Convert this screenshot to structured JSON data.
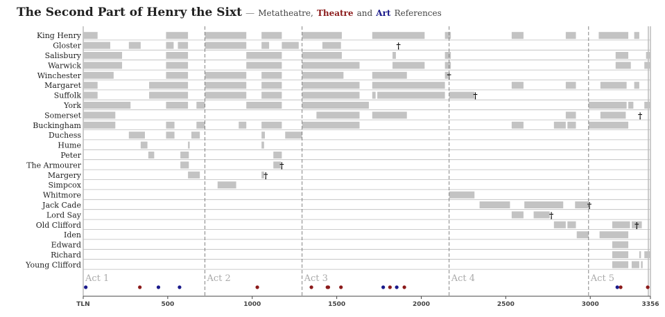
{
  "title": {
    "main": "The Second Part of Henry the Sixt",
    "separator": "—",
    "sub_prefix": "Metatheatre,",
    "theatre": "Theatre",
    "sub_and": "and",
    "art": "Art",
    "sub_suffix": "References"
  },
  "colors": {
    "bar": "#c3c3c3",
    "line": "#bbbbbb",
    "theatre": "#8b1a1a",
    "art": "#1a1a8b",
    "metatheatre": "#1a1a8b"
  },
  "chart_data": {
    "type": "timeline",
    "xmin": 0,
    "xmax": 3356,
    "tick_labels": [
      {
        "x": 0,
        "label": "TLN"
      },
      {
        "x": 500,
        "label": "500"
      },
      {
        "x": 1000,
        "label": "1000"
      },
      {
        "x": 1500,
        "label": "1500"
      },
      {
        "x": 2000,
        "label": "2000"
      },
      {
        "x": 2500,
        "label": "2500"
      },
      {
        "x": 3000,
        "label": "3000"
      },
      {
        "x": 3356,
        "label": "3356"
      }
    ],
    "acts": [
      {
        "label": "Act 1",
        "start": 0
      },
      {
        "label": "Act 2",
        "start": 720
      },
      {
        "label": "Act 3",
        "start": 1295
      },
      {
        "label": "Act 4",
        "start": 2165
      },
      {
        "label": "Act 5",
        "start": 2990
      }
    ],
    "characters": [
      {
        "name": "King Henry",
        "segments": [
          [
            0,
            85
          ],
          [
            490,
            620
          ],
          [
            720,
            965
          ],
          [
            1055,
            1175
          ],
          [
            1295,
            1530
          ],
          [
            1710,
            2020
          ],
          [
            2140,
            2175
          ],
          [
            2535,
            2605
          ],
          [
            2855,
            2915
          ],
          [
            3050,
            3225
          ],
          [
            3260,
            3290
          ]
        ]
      },
      {
        "name": "Gloster",
        "segments": [
          [
            0,
            160
          ],
          [
            270,
            340
          ],
          [
            490,
            535
          ],
          [
            560,
            620
          ],
          [
            720,
            965
          ],
          [
            1055,
            1100
          ],
          [
            1175,
            1275
          ],
          [
            1415,
            1525
          ]
        ],
        "death": 1865
      },
      {
        "name": "Salisbury",
        "segments": [
          [
            0,
            230
          ],
          [
            490,
            620
          ],
          [
            965,
            1175
          ],
          [
            1295,
            1530
          ],
          [
            1830,
            1850
          ],
          [
            2140,
            2175
          ],
          [
            3150,
            3225
          ],
          [
            3330,
            3356
          ]
        ]
      },
      {
        "name": "Warwick",
        "segments": [
          [
            0,
            230
          ],
          [
            490,
            620
          ],
          [
            965,
            1175
          ],
          [
            1295,
            1635
          ],
          [
            1830,
            2020
          ],
          [
            2140,
            2175
          ],
          [
            3150,
            3240
          ],
          [
            3320,
            3356
          ]
        ]
      },
      {
        "name": "Winchester",
        "segments": [
          [
            0,
            180
          ],
          [
            490,
            620
          ],
          [
            720,
            965
          ],
          [
            1055,
            1175
          ],
          [
            1295,
            1540
          ],
          [
            1710,
            1915
          ],
          [
            2140,
            2160
          ]
        ],
        "death": 2165
      },
      {
        "name": "Margaret",
        "segments": [
          [
            0,
            85
          ],
          [
            390,
            620
          ],
          [
            720,
            965
          ],
          [
            1055,
            1175
          ],
          [
            1295,
            1635
          ],
          [
            1710,
            2140
          ],
          [
            2535,
            2605
          ],
          [
            2855,
            2915
          ],
          [
            3060,
            3215
          ],
          [
            3260,
            3290
          ]
        ]
      },
      {
        "name": "Suffolk",
        "segments": [
          [
            0,
            85
          ],
          [
            390,
            620
          ],
          [
            720,
            965
          ],
          [
            1055,
            1175
          ],
          [
            1295,
            1635
          ],
          [
            1710,
            1730
          ],
          [
            1740,
            2140
          ],
          [
            2165,
            2315
          ]
        ],
        "death": 2320
      },
      {
        "name": "York",
        "segments": [
          [
            0,
            280
          ],
          [
            490,
            620
          ],
          [
            670,
            720
          ],
          [
            965,
            1175
          ],
          [
            1295,
            1690
          ],
          [
            2990,
            3215
          ],
          [
            3225,
            3255
          ],
          [
            3320,
            3356
          ]
        ]
      },
      {
        "name": "Somerset",
        "segments": [
          [
            0,
            190
          ],
          [
            1380,
            1635
          ],
          [
            1710,
            1915
          ],
          [
            2855,
            2915
          ],
          [
            3060,
            3210
          ]
        ],
        "death": 3295
      },
      {
        "name": "Buckingham",
        "segments": [
          [
            0,
            190
          ],
          [
            490,
            540
          ],
          [
            670,
            720
          ],
          [
            920,
            965
          ],
          [
            1055,
            1175
          ],
          [
            1295,
            1635
          ],
          [
            2535,
            2605
          ],
          [
            2785,
            2855
          ],
          [
            2865,
            2915
          ],
          [
            2990,
            3225
          ]
        ]
      },
      {
        "name": "Duchess",
        "segments": [
          [
            270,
            365
          ],
          [
            490,
            540
          ],
          [
            640,
            690
          ],
          [
            1055,
            1075
          ],
          [
            1195,
            1295
          ]
        ]
      },
      {
        "name": "Hume",
        "segments": [
          [
            340,
            380
          ],
          [
            620,
            630
          ],
          [
            1055,
            1070
          ]
        ]
      },
      {
        "name": "Peter",
        "segments": [
          [
            385,
            420
          ],
          [
            575,
            625
          ],
          [
            1125,
            1175
          ]
        ]
      },
      {
        "name": "The Armourer",
        "segments": [
          [
            575,
            625
          ],
          [
            1125,
            1170
          ]
        ],
        "death": 1175
      },
      {
        "name": "Margery",
        "segments": [
          [
            620,
            690
          ],
          [
            1055,
            1070
          ]
        ],
        "death": 1080
      },
      {
        "name": "Simpcox",
        "segments": [
          [
            795,
            905
          ]
        ]
      },
      {
        "name": "Whitmore",
        "segments": [
          [
            2165,
            2315
          ]
        ]
      },
      {
        "name": "Jack Cade",
        "segments": [
          [
            2345,
            2525
          ],
          [
            2610,
            2840
          ],
          [
            2910,
            2990
          ]
        ],
        "death": 2995
      },
      {
        "name": "Lord Say",
        "segments": [
          [
            2535,
            2605
          ],
          [
            2665,
            2760
          ]
        ],
        "death": 2770
      },
      {
        "name": "Old Clifford",
        "segments": [
          [
            2785,
            2855
          ],
          [
            2865,
            2915
          ],
          [
            3130,
            3235
          ],
          [
            3245,
            3305
          ]
        ],
        "death": 3275
      },
      {
        "name": "Iden",
        "segments": [
          [
            2920,
            2990
          ],
          [
            3055,
            3225
          ]
        ]
      },
      {
        "name": "Edward",
        "segments": [
          [
            3130,
            3225
          ]
        ]
      },
      {
        "name": "Richard",
        "segments": [
          [
            3130,
            3225
          ],
          [
            3290,
            3300
          ],
          [
            3320,
            3356
          ]
        ]
      },
      {
        "name": "Young Clifford",
        "segments": [
          [
            3130,
            3225
          ],
          [
            3245,
            3290
          ],
          [
            3300,
            3310
          ]
        ]
      }
    ],
    "references": [
      {
        "x": 15,
        "type": "art"
      },
      {
        "x": 335,
        "type": "theatre"
      },
      {
        "x": 445,
        "type": "art"
      },
      {
        "x": 570,
        "type": "art"
      },
      {
        "x": 1030,
        "type": "theatre"
      },
      {
        "x": 1350,
        "type": "theatre"
      },
      {
        "x": 1445,
        "type": "theatre"
      },
      {
        "x": 1450,
        "type": "theatre"
      },
      {
        "x": 1525,
        "type": "theatre"
      },
      {
        "x": 1775,
        "type": "art"
      },
      {
        "x": 1815,
        "type": "theatre"
      },
      {
        "x": 1855,
        "type": "art"
      },
      {
        "x": 1900,
        "type": "theatre"
      },
      {
        "x": 3160,
        "type": "art"
      },
      {
        "x": 3180,
        "type": "theatre"
      },
      {
        "x": 3340,
        "type": "theatre"
      }
    ]
  }
}
